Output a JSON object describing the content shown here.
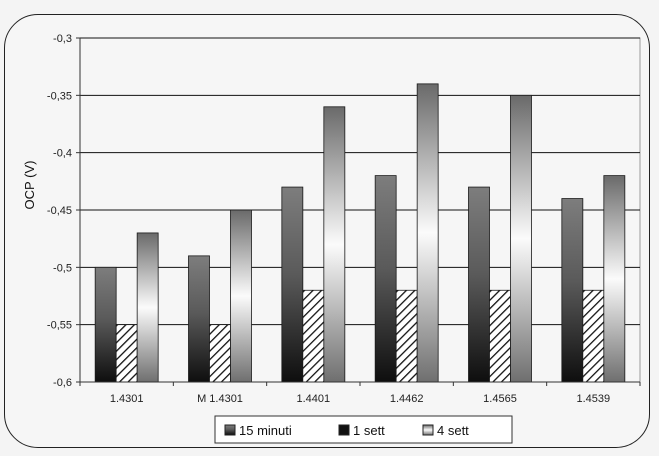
{
  "chart_data": {
    "type": "bar",
    "title": "",
    "xlabel": "",
    "ylabel": "OCP (V)",
    "ylim": [
      -0.6,
      -0.3
    ],
    "yticks": [
      -0.3,
      -0.35,
      -0.4,
      -0.45,
      -0.5,
      -0.55,
      -0.6
    ],
    "ytick_labels": [
      "-0,3",
      "-0,35",
      "-0,4",
      "-0,45",
      "-0,5",
      "-0,55",
      "-0,6"
    ],
    "categories": [
      "1.4301",
      "M 1.4301",
      "1.4401",
      "1.4462",
      "1.4565",
      "1.4539"
    ],
    "series": [
      {
        "name": "15 minuti",
        "values": [
          -0.5,
          -0.49,
          -0.43,
          -0.42,
          -0.43,
          -0.44
        ],
        "style": "gradient-dark"
      },
      {
        "name": "1 sett",
        "values": [
          -0.55,
          -0.55,
          -0.52,
          -0.52,
          -0.52,
          -0.52
        ],
        "style": "hatch"
      },
      {
        "name": "4 sett",
        "values": [
          -0.47,
          -0.45,
          -0.36,
          -0.34,
          -0.35,
          -0.42
        ],
        "style": "gradient-light"
      }
    ],
    "grid": true,
    "legend_position": "bottom",
    "colors": {
      "background": "#f6f6f6",
      "plot_background": "#f6f6f6",
      "grid": "#111111",
      "border": "#222222"
    }
  }
}
